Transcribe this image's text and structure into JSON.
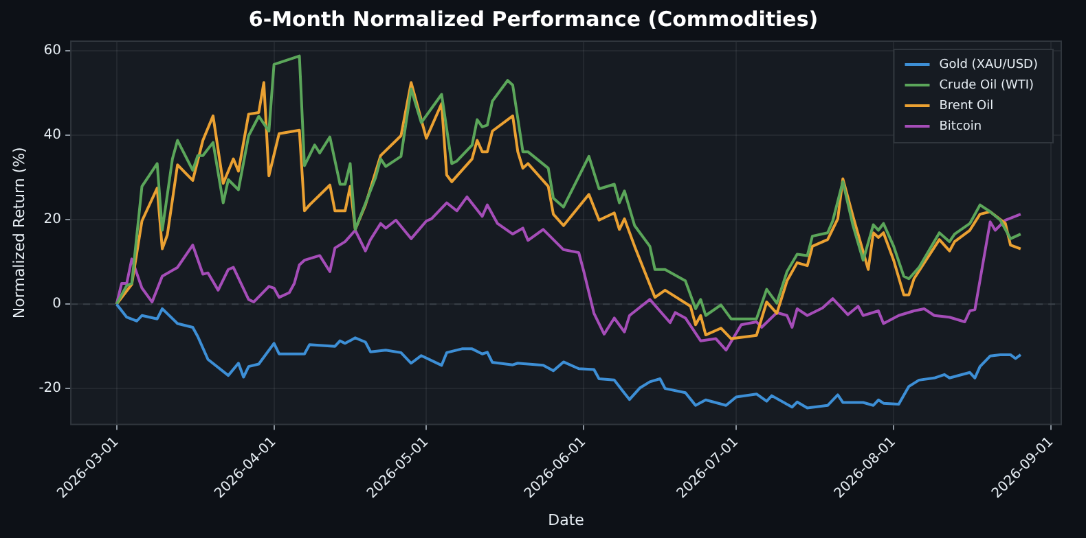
{
  "chart_data": {
    "type": "line",
    "title": "6-Month Normalized Performance (Commodities)",
    "xlabel": "Date",
    "ylabel": "Normalized Return (%)",
    "xlim": [
      "2026-02-20",
      "2026-09-03"
    ],
    "xticks": [
      "2026-03-01",
      "2026-04-01",
      "2026-05-01",
      "2026-06-01",
      "2026-07-01",
      "2026-08-01",
      "2026-09-01"
    ],
    "ylim": [
      -28.5,
      62.3
    ],
    "yticks": [
      -20,
      0,
      20,
      40,
      60
    ],
    "grid": true,
    "legend": "top right",
    "ref_lines": [
      {
        "axis": "y",
        "value": 0,
        "color": "#3a4048",
        "line_style": "dashed"
      }
    ],
    "series": [
      {
        "name": "Gold (XAU/USD)",
        "color": "#3d8fd6",
        "x": [
          "2026-03-01",
          "2026-03-03",
          "2026-03-05",
          "2026-03-06",
          "2026-03-09",
          "2026-03-10",
          "2026-03-13",
          "2026-03-16",
          "2026-03-17",
          "2026-03-19",
          "2026-03-23",
          "2026-03-25",
          "2026-03-26",
          "2026-03-27",
          "2026-03-29",
          "2026-04-01",
          "2026-04-02",
          "2026-04-07",
          "2026-04-08",
          "2026-04-13",
          "2026-04-14",
          "2026-04-15",
          "2026-04-17",
          "2026-04-19",
          "2026-04-20",
          "2026-04-23",
          "2026-04-26",
          "2026-04-28",
          "2026-04-30",
          "2026-05-04",
          "2026-05-05",
          "2026-05-08",
          "2026-05-10",
          "2026-05-12",
          "2026-05-13",
          "2026-05-14",
          "2026-05-18",
          "2026-05-19",
          "2026-05-24",
          "2026-05-26",
          "2026-05-28",
          "2026-05-31",
          "2026-06-03",
          "2026-06-04",
          "2026-06-07",
          "2026-06-09",
          "2026-06-10",
          "2026-06-12",
          "2026-06-14",
          "2026-06-16",
          "2026-06-17",
          "2026-06-21",
          "2026-06-23",
          "2026-06-25",
          "2026-06-29",
          "2026-07-01",
          "2026-07-05",
          "2026-07-07",
          "2026-07-08",
          "2026-07-12",
          "2026-07-13",
          "2026-07-15",
          "2026-07-19",
          "2026-07-21",
          "2026-07-22",
          "2026-07-26",
          "2026-07-28",
          "2026-07-29",
          "2026-07-30",
          "2026-08-02",
          "2026-08-04",
          "2026-08-06",
          "2026-08-09",
          "2026-08-11",
          "2026-08-12",
          "2026-08-16",
          "2026-08-17",
          "2026-08-18",
          "2026-08-20",
          "2026-08-22",
          "2026-08-24",
          "2026-08-25",
          "2026-08-26"
        ],
        "values": [
          0,
          -3.1,
          -4,
          -2.7,
          -3.5,
          -1.1,
          -4.6,
          -5.5,
          -7.7,
          -13.1,
          -16.9,
          -14,
          -17.3,
          -14.8,
          -14.2,
          -9.3,
          -11.8,
          -11.8,
          -9.6,
          -10,
          -8.7,
          -9.3,
          -8,
          -9,
          -11.3,
          -10.9,
          -11.5,
          -14,
          -12.2,
          -14.5,
          -11.5,
          -10.6,
          -10.6,
          -11.8,
          -11.4,
          -13.8,
          -14.4,
          -14,
          -14.5,
          -15.8,
          -13.7,
          -15.3,
          -15.5,
          -17.7,
          -18,
          -21.1,
          -22.6,
          -19.9,
          -18.4,
          -17.7,
          -20,
          -21,
          -24,
          -22.7,
          -24,
          -22,
          -21.3,
          -23,
          -21.7,
          -24.4,
          -23.2,
          -24.6,
          -24,
          -21.5,
          -23.3,
          -23.3,
          -24,
          -22.7,
          -23.5,
          -23.7,
          -19.5,
          -18,
          -17.5,
          -16.7,
          -17.5,
          -16.2,
          -17.5,
          -14.8,
          -12.3,
          -12,
          -12,
          -12.9,
          -12
        ]
      },
      {
        "name": "Crude Oil (WTI)",
        "color": "#5ba65a",
        "x": [
          "2026-03-01",
          "2026-03-03",
          "2026-03-04",
          "2026-03-06",
          "2026-03-09",
          "2026-03-10",
          "2026-03-12",
          "2026-03-13",
          "2026-03-16",
          "2026-03-17",
          "2026-03-18",
          "2026-03-20",
          "2026-03-22",
          "2026-03-23",
          "2026-03-25",
          "2026-03-27",
          "2026-03-29",
          "2026-03-31",
          "2026-04-01",
          "2026-04-06",
          "2026-04-07",
          "2026-04-09",
          "2026-04-10",
          "2026-04-12",
          "2026-04-14",
          "2026-04-15",
          "2026-04-16",
          "2026-04-17",
          "2026-04-21",
          "2026-04-22",
          "2026-04-23",
          "2026-04-26",
          "2026-04-28",
          "2026-04-30",
          "2026-05-04",
          "2026-05-06",
          "2026-05-07",
          "2026-05-10",
          "2026-05-11",
          "2026-05-12",
          "2026-05-13",
          "2026-05-14",
          "2026-05-17",
          "2026-05-18",
          "2026-05-20",
          "2026-05-21",
          "2026-05-25",
          "2026-05-26",
          "2026-05-28",
          "2026-06-02",
          "2026-06-04",
          "2026-06-07",
          "2026-06-08",
          "2026-06-09",
          "2026-06-11",
          "2026-06-14",
          "2026-06-15",
          "2026-06-17",
          "2026-06-21",
          "2026-06-23",
          "2026-06-24",
          "2026-06-25",
          "2026-06-28",
          "2026-06-30",
          "2026-07-05",
          "2026-07-07",
          "2026-07-09",
          "2026-07-11",
          "2026-07-13",
          "2026-07-15",
          "2026-07-16",
          "2026-07-19",
          "2026-07-20",
          "2026-07-22",
          "2026-07-24",
          "2026-07-26",
          "2026-07-28",
          "2026-07-29",
          "2026-07-30",
          "2026-08-01",
          "2026-08-03",
          "2026-08-04",
          "2026-08-06",
          "2026-08-10",
          "2026-08-12",
          "2026-08-13",
          "2026-08-16",
          "2026-08-18",
          "2026-08-20",
          "2026-08-22",
          "2026-08-24",
          "2026-08-26"
        ],
        "values": [
          0,
          4.4,
          4.9,
          27.9,
          33.3,
          17.5,
          34.4,
          38.8,
          31.7,
          35.2,
          35.2,
          38.3,
          24,
          29.5,
          27.1,
          39.9,
          44.5,
          41,
          56.8,
          58.8,
          32.8,
          37.7,
          35.8,
          39.6,
          28.4,
          28.4,
          33.3,
          17.7,
          30,
          34.4,
          32.6,
          35,
          51,
          43,
          49.7,
          33.3,
          33.9,
          37.7,
          43.7,
          42,
          42.4,
          48.1,
          53,
          51.9,
          36.1,
          36.1,
          32.2,
          25.1,
          23,
          35,
          27.3,
          28.4,
          24,
          26.8,
          18.6,
          13.7,
          8.2,
          8.2,
          5.5,
          -1.1,
          1.1,
          -2.7,
          -0.2,
          -3.5,
          -3.5,
          3.5,
          0.2,
          7.7,
          11.8,
          11.5,
          16.1,
          16.9,
          19.7,
          29,
          18.6,
          10.4,
          18.8,
          17.5,
          19.1,
          13.7,
          6.6,
          6,
          8.7,
          16.9,
          14.8,
          16.6,
          19.1,
          23.5,
          21.9,
          19.9,
          15.5,
          16.6
        ]
      },
      {
        "name": "Brent Oil",
        "color": "#eba132",
        "x": [
          "2026-03-01",
          "2026-03-04",
          "2026-03-06",
          "2026-03-09",
          "2026-03-10",
          "2026-03-11",
          "2026-03-13",
          "2026-03-16",
          "2026-03-18",
          "2026-03-20",
          "2026-03-22",
          "2026-03-24",
          "2026-03-25",
          "2026-03-27",
          "2026-03-29",
          "2026-03-30",
          "2026-03-31",
          "2026-04-02",
          "2026-04-06",
          "2026-04-07",
          "2026-04-08",
          "2026-04-12",
          "2026-04-13",
          "2026-04-15",
          "2026-04-16",
          "2026-04-17",
          "2026-04-19",
          "2026-04-22",
          "2026-04-26",
          "2026-04-28",
          "2026-05-01",
          "2026-05-04",
          "2026-05-05",
          "2026-05-06",
          "2026-05-10",
          "2026-05-11",
          "2026-05-12",
          "2026-05-13",
          "2026-05-14",
          "2026-05-18",
          "2026-05-19",
          "2026-05-20",
          "2026-05-21",
          "2026-05-25",
          "2026-05-26",
          "2026-05-28",
          "2026-06-02",
          "2026-06-04",
          "2026-06-07",
          "2026-06-08",
          "2026-06-09",
          "2026-06-11",
          "2026-06-15",
          "2026-06-17",
          "2026-06-22",
          "2026-06-23",
          "2026-06-24",
          "2026-06-25",
          "2026-06-28",
          "2026-06-30",
          "2026-07-05",
          "2026-07-07",
          "2026-07-09",
          "2026-07-11",
          "2026-07-13",
          "2026-07-15",
          "2026-07-16",
          "2026-07-19",
          "2026-07-21",
          "2026-07-22",
          "2026-07-24",
          "2026-07-27",
          "2026-07-28",
          "2026-07-29",
          "2026-07-30",
          "2026-08-01",
          "2026-08-03",
          "2026-08-04",
          "2026-08-05",
          "2026-08-10",
          "2026-08-12",
          "2026-08-13",
          "2026-08-16",
          "2026-08-18",
          "2026-08-20",
          "2026-08-23",
          "2026-08-24",
          "2026-08-26"
        ],
        "values": [
          0,
          4.7,
          19.7,
          27.5,
          13.1,
          16.4,
          33,
          29.3,
          38.8,
          44.6,
          28.6,
          34.4,
          31.5,
          45,
          45.4,
          52.5,
          30.4,
          40.4,
          41.2,
          22.1,
          23.5,
          28.2,
          22.1,
          22.1,
          27.9,
          17.7,
          23.5,
          35.2,
          39.9,
          52.5,
          39.3,
          47.5,
          30.6,
          29,
          34.4,
          38.8,
          36.1,
          36.1,
          41,
          44.6,
          36.1,
          32.2,
          33.3,
          27.9,
          21.3,
          18.6,
          26,
          19.9,
          21.6,
          17.7,
          20.2,
          13.7,
          1.6,
          3.3,
          -0.5,
          -4.9,
          -2.7,
          -7.3,
          -5.7,
          -8.2,
          -7.4,
          0.5,
          -2.2,
          5.5,
          9.8,
          9.1,
          13.7,
          15.3,
          20.2,
          29.7,
          20.8,
          8.2,
          16.9,
          15.8,
          16.9,
          10.4,
          2.2,
          2.2,
          6,
          15.3,
          12.6,
          14.8,
          17.5,
          21.3,
          21.9,
          19.1,
          14,
          13.1
        ]
      },
      {
        "name": "Bitcoin",
        "color": "#a54db8",
        "x": [
          "2026-03-01",
          "2026-03-02",
          "2026-03-03",
          "2026-03-04",
          "2026-03-06",
          "2026-03-08",
          "2026-03-10",
          "2026-03-13",
          "2026-03-16",
          "2026-03-18",
          "2026-03-19",
          "2026-03-21",
          "2026-03-23",
          "2026-03-24",
          "2026-03-27",
          "2026-03-28",
          "2026-03-31",
          "2026-04-01",
          "2026-04-02",
          "2026-04-04",
          "2026-04-05",
          "2026-04-06",
          "2026-04-07",
          "2026-04-10",
          "2026-04-12",
          "2026-04-13",
          "2026-04-15",
          "2026-04-17",
          "2026-04-19",
          "2026-04-20",
          "2026-04-22",
          "2026-04-23",
          "2026-04-25",
          "2026-04-28",
          "2026-05-01",
          "2026-05-02",
          "2026-05-05",
          "2026-05-07",
          "2026-05-09",
          "2026-05-12",
          "2026-05-13",
          "2026-05-15",
          "2026-05-18",
          "2026-05-20",
          "2026-05-21",
          "2026-05-24",
          "2026-05-28",
          "2026-05-31",
          "2026-06-01",
          "2026-06-03",
          "2026-06-05",
          "2026-06-07",
          "2026-06-09",
          "2026-06-10",
          "2026-06-14",
          "2026-06-18",
          "2026-06-19",
          "2026-06-21",
          "2026-06-24",
          "2026-06-27",
          "2026-06-29",
          "2026-07-02",
          "2026-07-05",
          "2026-07-06",
          "2026-07-09",
          "2026-07-11",
          "2026-07-12",
          "2026-07-13",
          "2026-07-15",
          "2026-07-18",
          "2026-07-20",
          "2026-07-23",
          "2026-07-25",
          "2026-07-26",
          "2026-07-29",
          "2026-07-30",
          "2026-08-02",
          "2026-08-05",
          "2026-08-07",
          "2026-08-09",
          "2026-08-12",
          "2026-08-15",
          "2026-08-16",
          "2026-08-17",
          "2026-08-20",
          "2026-08-21",
          "2026-08-23",
          "2026-08-26"
        ],
        "values": [
          0,
          4.9,
          4.9,
          10.7,
          3.8,
          0.5,
          6.6,
          8.7,
          14,
          7.1,
          7.4,
          3.3,
          8.2,
          8.7,
          1.1,
          0.5,
          4.2,
          3.8,
          1.6,
          2.7,
          4.9,
          9.3,
          10.4,
          11.5,
          7.7,
          13.3,
          14.8,
          17.5,
          12.6,
          15.3,
          19.1,
          18,
          19.9,
          15.5,
          19.7,
          20.2,
          24,
          22.1,
          25.4,
          20.8,
          23.5,
          19.1,
          16.6,
          18,
          15.1,
          17.7,
          12.9,
          12.2,
          7.7,
          -2.2,
          -7.1,
          -3.3,
          -6.6,
          -2.7,
          1.1,
          -4.4,
          -2,
          -3.3,
          -8.7,
          -8.2,
          -10.9,
          -4.9,
          -4.2,
          -5.5,
          -2,
          -2.7,
          -5.5,
          -1.1,
          -2.7,
          -0.9,
          1.3,
          -2.5,
          -0.5,
          -2.7,
          -1.6,
          -4.6,
          -2.7,
          -1.6,
          -1.1,
          -2.7,
          -3.1,
          -4.2,
          -1.6,
          -1.3,
          19.5,
          17.5,
          19.9,
          21.3
        ]
      }
    ]
  }
}
